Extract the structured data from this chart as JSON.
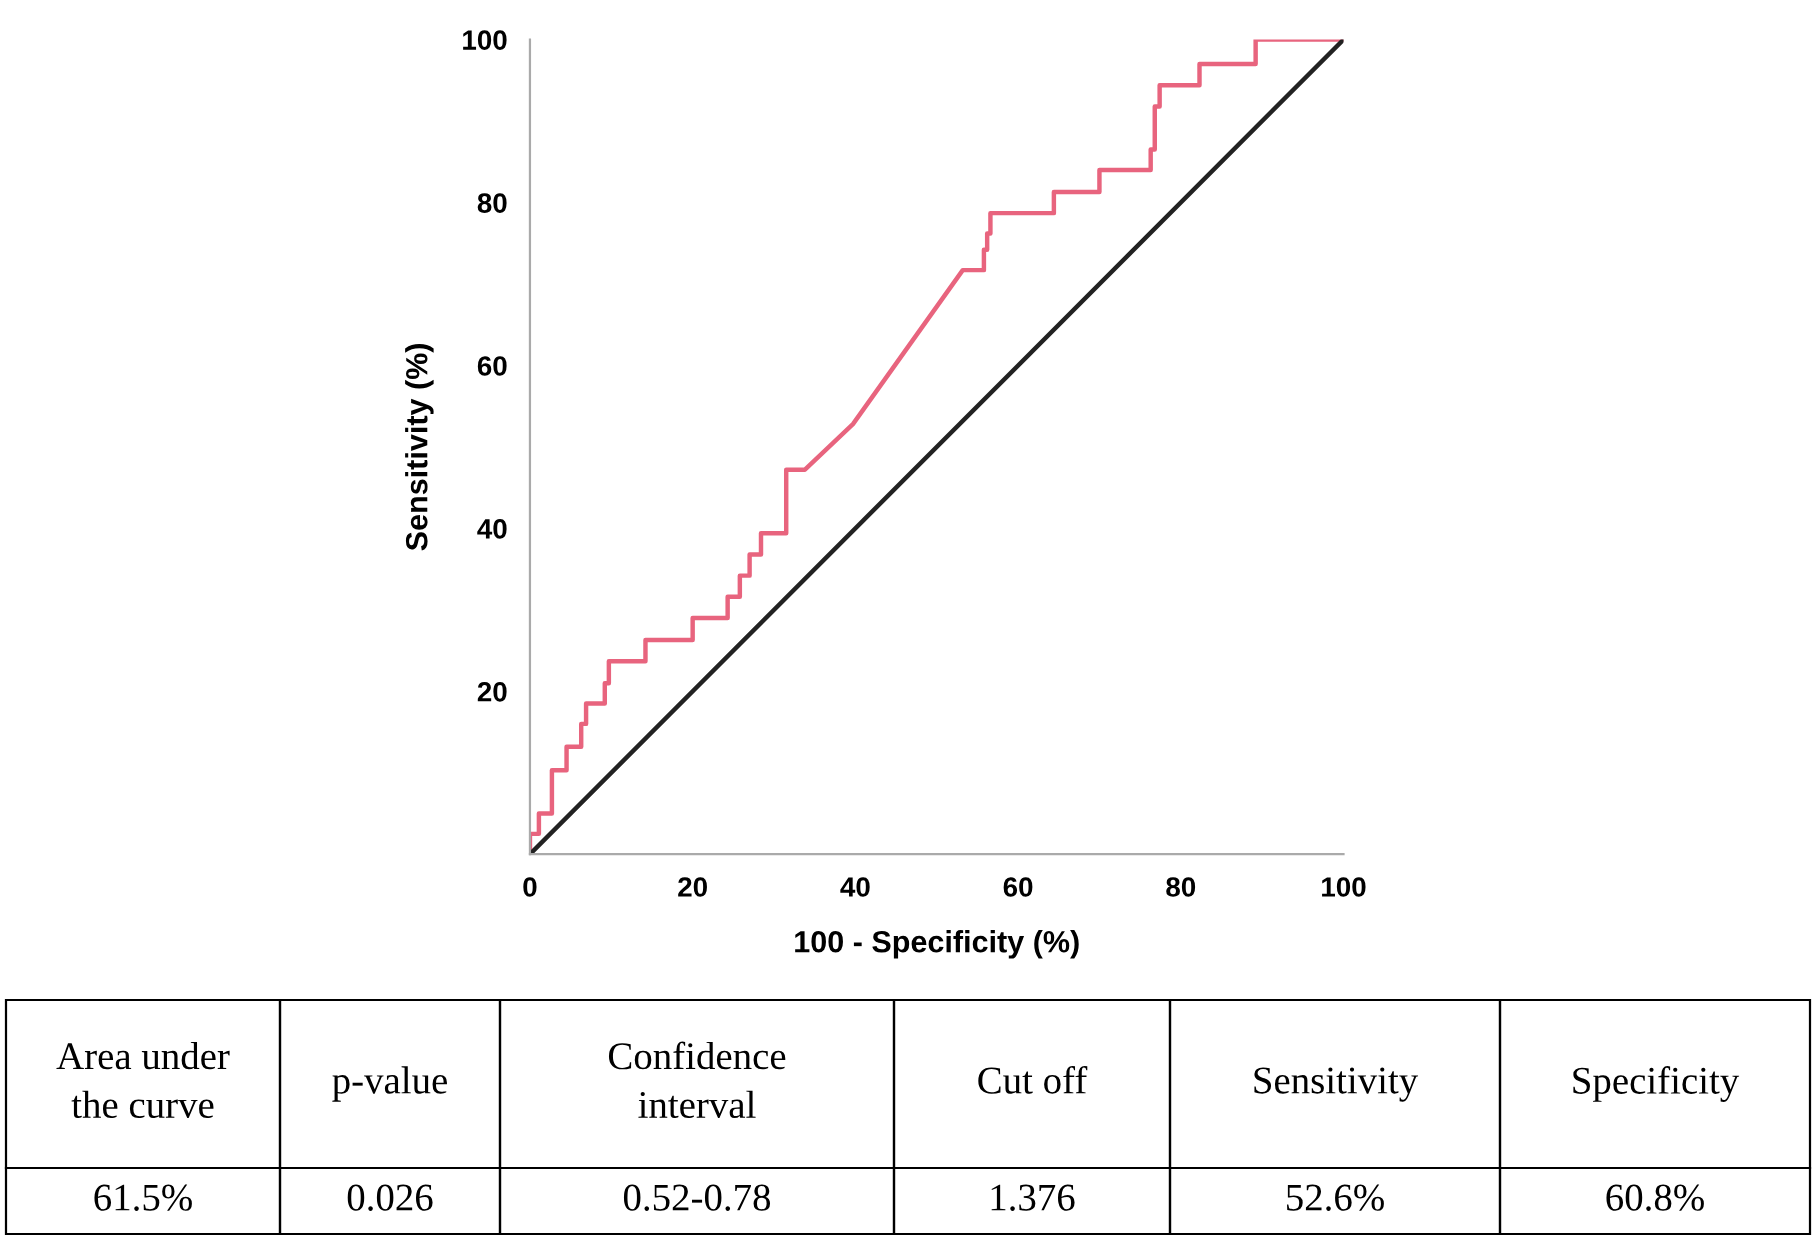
{
  "chart_data": {
    "type": "line",
    "xlabel": "100 - Specificity (%)",
    "ylabel": "Sensitivity (%)",
    "xlim": [
      0,
      100
    ],
    "ylim": [
      0,
      100
    ],
    "xticks": [
      0,
      20,
      40,
      60,
      80,
      100
    ],
    "yticks": [
      20,
      40,
      60,
      80,
      100
    ],
    "grid": false,
    "legend": false,
    "marker": "none",
    "line_style": "solid",
    "series": [
      {
        "color": "#e8647e",
        "x": [
          0,
          0,
          1.1,
          1.1,
          2.7,
          2.7,
          4.5,
          4.5,
          6.3,
          6.3,
          6.9,
          6.9,
          9.2,
          9.2,
          9.7,
          9.7,
          14.2,
          14.2,
          20,
          20,
          24.3,
          24.3,
          25.8,
          25.8,
          27,
          27,
          28.4,
          28.4,
          31.5,
          31.5,
          31.5,
          33.8,
          39.7,
          53.2,
          55.8,
          55.8,
          56.2,
          56.2,
          56.6,
          56.6,
          64.4,
          64.4,
          70,
          70,
          76.3,
          76.3,
          76.8,
          76.8,
          77.4,
          77.4,
          82.3,
          82.3,
          89.2,
          89.2,
          100
        ],
        "values": [
          0,
          2.5,
          2.5,
          5,
          5,
          10.3,
          10.3,
          13.2,
          13.2,
          16,
          16,
          18.5,
          18.5,
          21,
          21,
          23.7,
          23.7,
          26.3,
          26.3,
          29,
          29,
          31.6,
          31.6,
          34.2,
          34.2,
          36.8,
          36.8,
          39.4,
          39.4,
          41.8,
          47.2,
          47.2,
          52.8,
          71.7,
          71.7,
          74.2,
          74.2,
          76.2,
          76.2,
          78.7,
          78.7,
          81.3,
          81.3,
          84,
          84,
          86.5,
          86.5,
          91.8,
          91.8,
          94.4,
          94.4,
          97,
          97,
          100,
          100
        ]
      },
      {
        "color": "#222222",
        "x": [
          0,
          100
        ],
        "values": [
          0,
          100
        ]
      }
    ],
    "annotations": [
      "Area under\nthe curve",
      "p-value",
      "Confidence\ninterval",
      "Cut off",
      "Sensitivity",
      "Specificity",
      "61.5%",
      "0.026",
      "0.52-0.78",
      "1.376",
      "52.6%",
      "60.8%"
    ]
  }
}
